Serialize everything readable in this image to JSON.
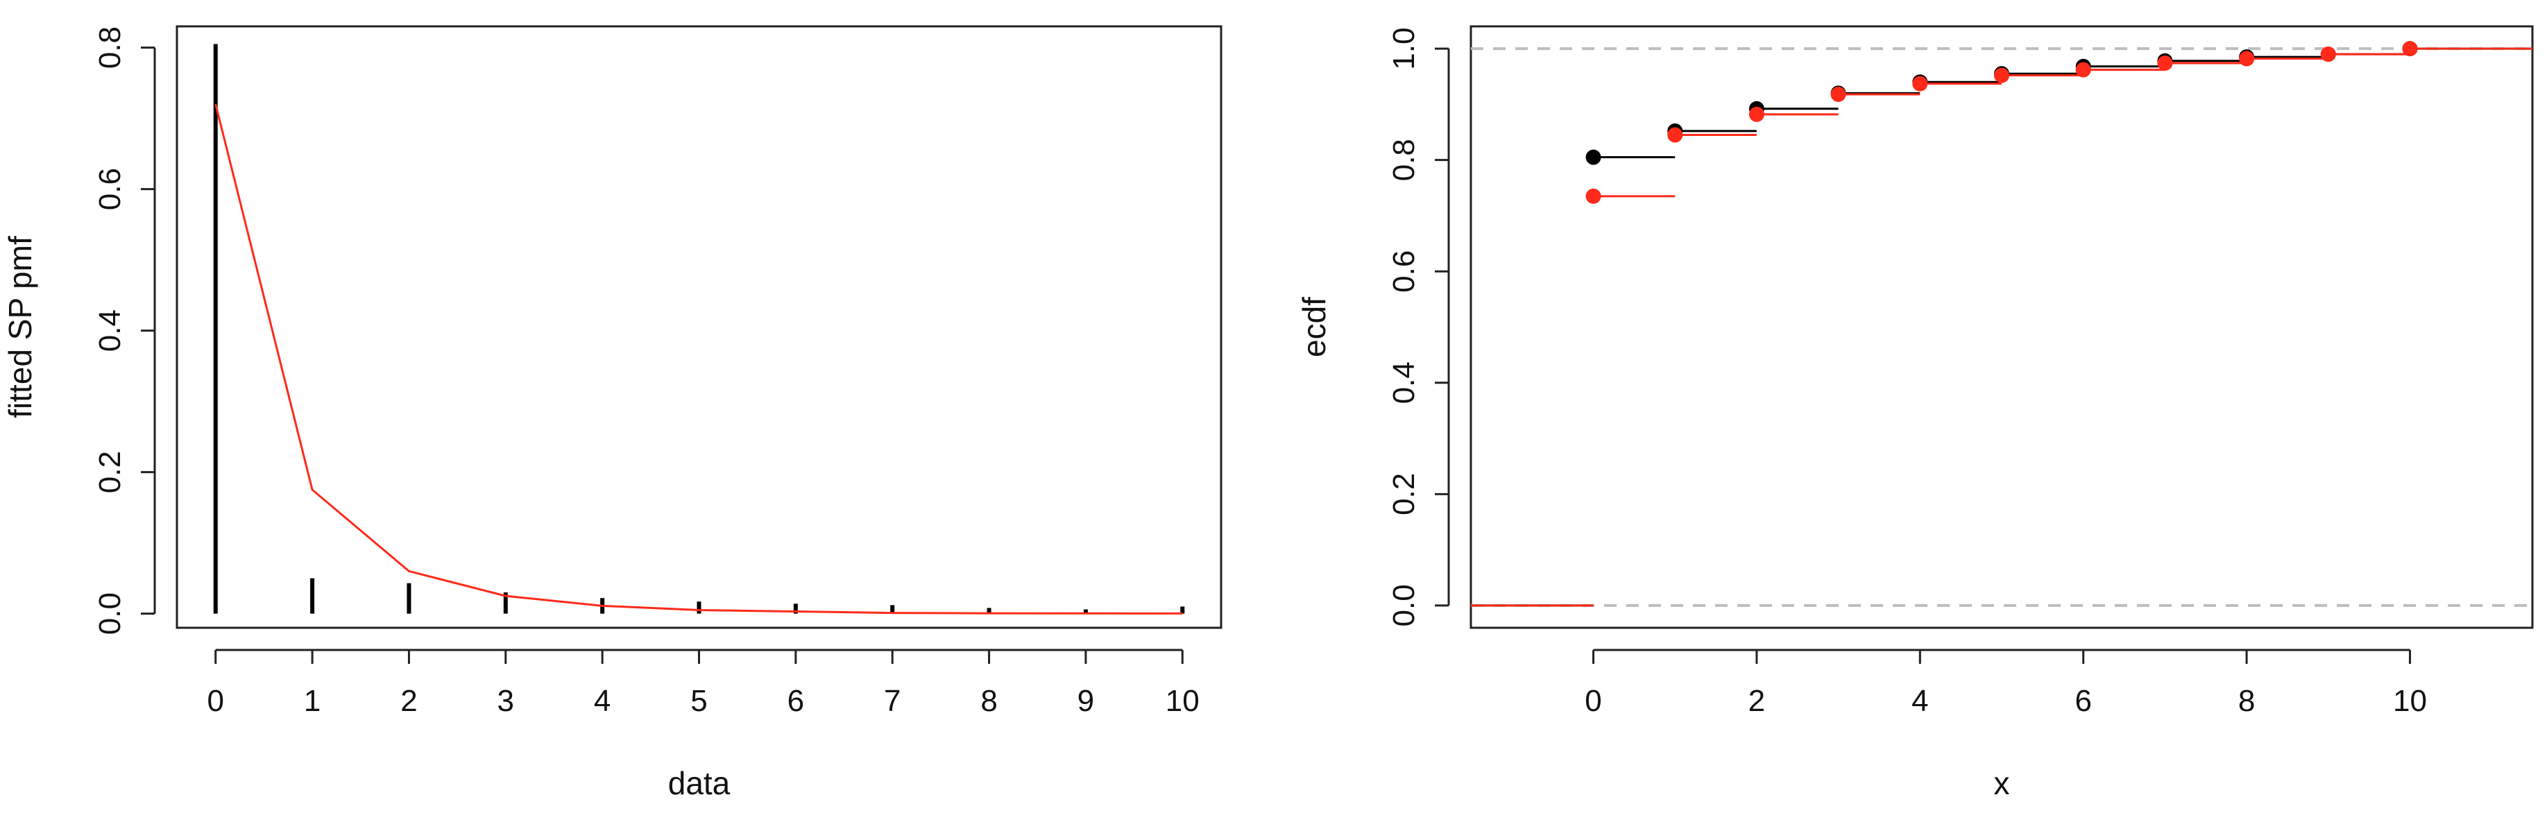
{
  "colors": {
    "observed": "#000000",
    "fitted": "#ff2a1a",
    "reference": "#bdbdbd",
    "axis": "#222222"
  },
  "chart_data": [
    {
      "type": "line",
      "title": "",
      "xlabel": "data",
      "ylabel": "fitted SP pmf",
      "xlim": [
        -0.4,
        10.4
      ],
      "ylim": [
        -0.02,
        0.83
      ],
      "x_ticks": [
        0,
        1,
        2,
        3,
        4,
        5,
        6,
        7,
        8,
        9,
        10
      ],
      "y_ticks": [
        0.0,
        0.2,
        0.4,
        0.6,
        0.8
      ],
      "grid": false,
      "legend": "none",
      "series": [
        {
          "kind": "spikes",
          "x": [
            0,
            1,
            2,
            3,
            4,
            5,
            6,
            7,
            8,
            9,
            10
          ],
          "values": [
            0.805,
            0.05,
            0.043,
            0.03,
            0.022,
            0.017,
            0.014,
            0.012,
            0.008,
            0.006,
            0.01
          ]
        },
        {
          "kind": "line",
          "x": [
            0,
            1,
            2,
            3,
            4,
            5,
            6,
            7,
            8,
            9,
            10
          ],
          "values": [
            0.72,
            0.175,
            0.06,
            0.025,
            0.011,
            0.005,
            0.003,
            0.001,
            0.0005,
            0.0003,
            0.0002
          ]
        }
      ]
    },
    {
      "type": "step",
      "title": "",
      "xlabel": "x",
      "ylabel": "ecdf",
      "xlim": [
        -1.5,
        11.5
      ],
      "ylim": [
        -0.04,
        1.04
      ],
      "x_ticks": [
        0,
        2,
        4,
        6,
        8,
        10
      ],
      "y_ticks": [
        0.0,
        0.2,
        0.4,
        0.6,
        0.8,
        1.0
      ],
      "reference_lines": [
        0,
        1
      ],
      "grid": false,
      "legend": "none",
      "series": [
        {
          "kind": "ecdf",
          "x": [
            0,
            1,
            2,
            3,
            4,
            5,
            6,
            7,
            8,
            9,
            10
          ],
          "values": [
            0.805,
            0.852,
            0.892,
            0.92,
            0.94,
            0.955,
            0.968,
            0.978,
            0.985,
            0.99,
            1.0
          ]
        },
        {
          "kind": "ecdf",
          "x": [
            0,
            1,
            2,
            3,
            4,
            5,
            6,
            7,
            8,
            9,
            10
          ],
          "values": [
            0.735,
            0.845,
            0.882,
            0.918,
            0.937,
            0.952,
            0.962,
            0.974,
            0.982,
            0.99,
            1.0
          ]
        }
      ]
    }
  ]
}
